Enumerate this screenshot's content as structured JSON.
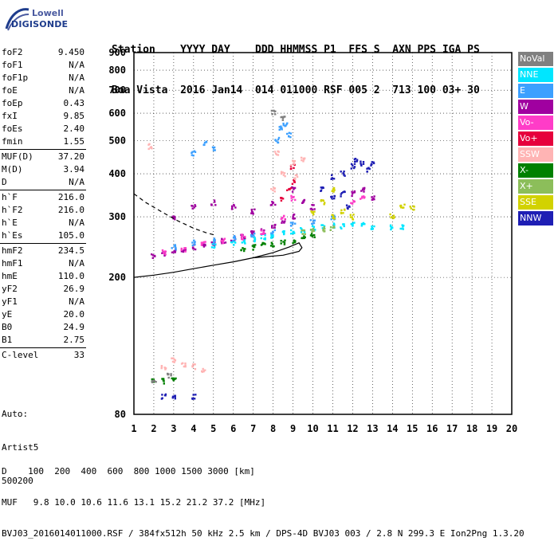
{
  "logo": {
    "line1": "Lowell",
    "line2": "DIGISONDE"
  },
  "header": {
    "labels": [
      "Station",
      "YYYY",
      "DAY",
      "DDD",
      "HHMMSS",
      "P1",
      "FFS",
      "S",
      "AXN",
      "PPS",
      "IGA",
      "PS"
    ],
    "values": [
      "Boa Vista",
      "2016",
      "Jan14",
      "014",
      "011000",
      "RSF",
      "005",
      "2",
      "713",
      "100",
      "03+",
      "30"
    ],
    "line1": "Station    YYYY DAY    DDD HHMMSS P1  FFS S  AXN PPS IGA PS",
    "line2": "Boa Vista  2016 Jan14  014 011000 RSF 005 2  713 100 03+ 30"
  },
  "params": [
    {
      "k": "foF2",
      "v": "9.450"
    },
    {
      "k": "foF1",
      "v": "N/A"
    },
    {
      "k": "foF1p",
      "v": "N/A"
    },
    {
      "k": "foE",
      "v": "N/A"
    },
    {
      "k": "foEp",
      "v": "0.43"
    },
    {
      "k": "fxI",
      "v": "9.85"
    },
    {
      "k": "foEs",
      "v": "2.40"
    },
    {
      "k": "fmin",
      "v": "1.55"
    },
    {
      "sep": true
    },
    {
      "k": "MUF(D)",
      "v": "37.20"
    },
    {
      "k": "M(D)",
      "v": "3.94"
    },
    {
      "k": "D",
      "v": "N/A"
    },
    {
      "sep": true
    },
    {
      "k": "h`F",
      "v": "216.0"
    },
    {
      "k": "h`F2",
      "v": "216.0"
    },
    {
      "k": "h`E",
      "v": "N/A"
    },
    {
      "k": "h`Es",
      "v": "105.0"
    },
    {
      "sep": true
    },
    {
      "k": "hmF2",
      "v": "234.5"
    },
    {
      "k": "hmF1",
      "v": "N/A"
    },
    {
      "k": "hmE",
      "v": "110.0"
    },
    {
      "k": "yF2",
      "v": "26.9"
    },
    {
      "k": "yF1",
      "v": "N/A"
    },
    {
      "k": "yE",
      "v": "20.0"
    },
    {
      "k": "B0",
      "v": "24.9"
    },
    {
      "k": "B1",
      "v": "2.75"
    },
    {
      "sep": true
    },
    {
      "k": "C-level",
      "v": "33"
    }
  ],
  "auto": {
    "line1": "Auto:",
    "line2": "Artist5",
    "line3": "500200"
  },
  "legend": [
    {
      "label": "NoVal",
      "color": "#808080"
    },
    {
      "label": "NNE",
      "color": "#00e6ff"
    },
    {
      "label": "E",
      "color": "#3ca0ff"
    },
    {
      "label": "W",
      "color": "#a000a0"
    },
    {
      "label": "Vo-",
      "color": "#ff3cc8"
    },
    {
      "label": "Vo+",
      "color": "#e6003c"
    },
    {
      "label": "SSW",
      "color": "#ffb4b4"
    },
    {
      "label": "X-",
      "color": "#008000"
    },
    {
      "label": "X+",
      "color": "#8cbe5a"
    },
    {
      "label": "SSE",
      "color": "#d2d200"
    },
    {
      "label": "NNW",
      "color": "#1e1eb4"
    }
  ],
  "footer": {
    "line1": "D    100  200  400  600  800 1000 1500 3000 [km]",
    "line2": "MUF   9.8 10.0 10.6 11.6 13.1 15.2 21.2 37.2 [MHz]",
    "line3": "BVJ03_2016014011000.RSF / 384fx512h 50 kHz 2.5 km / DPS-4D BVJ03 003 / 2.8 N 299.3 E Ion2Png 1.3.20"
  },
  "chart_data": {
    "type": "scatter",
    "xlabel": "",
    "ylabel": "",
    "xlim": [
      1,
      20
    ],
    "ylim": [
      80,
      900
    ],
    "yscale": "log",
    "xticks": [
      1,
      2,
      3,
      4,
      5,
      6,
      7,
      8,
      9,
      10,
      11,
      12,
      13,
      14,
      15,
      16,
      17,
      18,
      19,
      20
    ],
    "yticks": [
      80,
      200,
      300,
      400,
      500,
      600,
      700,
      800,
      900
    ],
    "grid": true,
    "legend_position": "right",
    "series": [
      {
        "name": "W",
        "color": "#a000a0",
        "points": [
          [
            2.0,
            230
          ],
          [
            2.5,
            235
          ],
          [
            3.0,
            238
          ],
          [
            3.5,
            240
          ],
          [
            4.0,
            245
          ],
          [
            4.5,
            248
          ],
          [
            5.0,
            250
          ],
          [
            5.5,
            255
          ],
          [
            6.0,
            258
          ],
          [
            6.5,
            262
          ],
          [
            7.0,
            268
          ],
          [
            7.5,
            272
          ],
          [
            8.0,
            280
          ],
          [
            8.5,
            290
          ],
          [
            9.0,
            300
          ],
          [
            3.0,
            300
          ],
          [
            4.0,
            320
          ],
          [
            5.0,
            330
          ],
          [
            6.0,
            320
          ],
          [
            7.0,
            310
          ],
          [
            8.0,
            330
          ],
          [
            9.0,
            360
          ],
          [
            9.5,
            330
          ],
          [
            12.0,
            350
          ],
          [
            12.5,
            360
          ],
          [
            13.0,
            340
          ],
          [
            10.0,
            320
          ]
        ]
      },
      {
        "name": "NNE",
        "color": "#00e6ff",
        "points": [
          [
            5.0,
            248
          ],
          [
            6.0,
            252
          ],
          [
            6.5,
            255
          ],
          [
            7.0,
            258
          ],
          [
            7.5,
            262
          ],
          [
            8.0,
            265
          ],
          [
            8.5,
            268
          ],
          [
            9.0,
            272
          ],
          [
            9.5,
            275
          ],
          [
            10.0,
            278
          ],
          [
            10.5,
            280
          ],
          [
            11.0,
            282
          ],
          [
            11.5,
            282
          ],
          [
            12.0,
            285
          ],
          [
            12.5,
            285
          ],
          [
            13.0,
            280
          ],
          [
            14.0,
            280
          ],
          [
            14.5,
            280
          ]
        ]
      },
      {
        "name": "E",
        "color": "#3ca0ff",
        "points": [
          [
            3.0,
            245
          ],
          [
            4.0,
            252
          ],
          [
            5.0,
            255
          ],
          [
            6.0,
            260
          ],
          [
            7.0,
            265
          ],
          [
            8.0,
            270
          ],
          [
            9.0,
            285
          ],
          [
            10.0,
            290
          ],
          [
            11.0,
            300
          ],
          [
            8.2,
            500
          ],
          [
            8.4,
            540
          ],
          [
            8.6,
            560
          ],
          [
            8.8,
            520
          ],
          [
            4.0,
            460
          ],
          [
            4.6,
            490
          ],
          [
            5.0,
            470
          ]
        ]
      },
      {
        "name": "Vo-",
        "color": "#ff3cc8",
        "points": [
          [
            2.5,
            236
          ],
          [
            3.5,
            242
          ],
          [
            4.5,
            250
          ],
          [
            5.5,
            256
          ],
          [
            6.5,
            262
          ],
          [
            7.5,
            270
          ],
          [
            8.5,
            300
          ],
          [
            9.0,
            340
          ],
          [
            12.0,
            330
          ],
          [
            12.5,
            340
          ]
        ]
      },
      {
        "name": "Vo+",
        "color": "#e6003c",
        "points": [
          [
            8.5,
            340
          ],
          [
            9.0,
            380
          ],
          [
            9.0,
            420
          ],
          [
            8.8,
            360
          ]
        ]
      },
      {
        "name": "SSW",
        "color": "#ffb4b4",
        "points": [
          [
            2.5,
            110
          ],
          [
            3.0,
            115
          ],
          [
            3.5,
            112
          ],
          [
            4.0,
            110
          ],
          [
            4.5,
            108
          ],
          [
            8.0,
            360
          ],
          [
            8.5,
            400
          ],
          [
            9.0,
            430
          ],
          [
            9.5,
            440
          ],
          [
            8.2,
            460
          ],
          [
            9.2,
            390
          ],
          [
            1.8,
            480
          ]
        ]
      },
      {
        "name": "X-",
        "color": "#008000",
        "points": [
          [
            6.5,
            240
          ],
          [
            7.0,
            245
          ],
          [
            7.5,
            248
          ],
          [
            8.0,
            250
          ],
          [
            8.5,
            252
          ],
          [
            9.0,
            256
          ],
          [
            9.5,
            260
          ],
          [
            10.0,
            265
          ],
          [
            2.0,
            100
          ],
          [
            2.5,
            100
          ],
          [
            3.0,
            102
          ]
        ]
      },
      {
        "name": "X+",
        "color": "#8cbe5a",
        "points": [
          [
            9.5,
            270
          ],
          [
            10.0,
            272
          ],
          [
            10.5,
            275
          ],
          [
            11.0,
            278
          ]
        ]
      },
      {
        "name": "SSE",
        "color": "#d2d200",
        "points": [
          [
            10.0,
            310
          ],
          [
            10.5,
            330
          ],
          [
            11.0,
            360
          ],
          [
            11.0,
            300
          ],
          [
            11.5,
            310
          ],
          [
            12.0,
            300
          ],
          [
            14.0,
            300
          ],
          [
            14.5,
            320
          ],
          [
            15.0,
            320
          ]
        ]
      },
      {
        "name": "NNW",
        "color": "#1e1eb4",
        "points": [
          [
            10.5,
            360
          ],
          [
            11.0,
            390
          ],
          [
            11.5,
            400
          ],
          [
            11.0,
            340
          ],
          [
            11.5,
            350
          ],
          [
            12.0,
            420
          ],
          [
            12.5,
            430
          ],
          [
            13.0,
            430
          ],
          [
            12.2,
            440
          ],
          [
            12.8,
            410
          ],
          [
            11.8,
            320
          ],
          [
            2.5,
            90
          ],
          [
            3.0,
            90
          ],
          [
            4.0,
            90
          ]
        ]
      },
      {
        "name": "NoVal",
        "color": "#808080",
        "points": [
          [
            2.0,
            100
          ],
          [
            2.8,
            104
          ],
          [
            8.5,
            580
          ],
          [
            8.0,
            600
          ]
        ]
      }
    ],
    "lines": [
      {
        "name": "profile-solid",
        "style": "solid",
        "points": [
          [
            1.0,
            200
          ],
          [
            2.0,
            203
          ],
          [
            3.0,
            207
          ],
          [
            4.0,
            212
          ],
          [
            5.0,
            217
          ],
          [
            6.0,
            222
          ],
          [
            7.0,
            228
          ],
          [
            8.0,
            236
          ],
          [
            8.8,
            245
          ],
          [
            9.3,
            252
          ],
          [
            9.45,
            244
          ],
          [
            9.3,
            238
          ],
          [
            8.5,
            232
          ],
          [
            7.0,
            228
          ]
        ]
      },
      {
        "name": "profile-dashed",
        "style": "dashed",
        "points": [
          [
            1.0,
            350
          ],
          [
            1.6,
            330
          ],
          [
            2.4,
            310
          ],
          [
            3.2,
            292
          ],
          [
            4.0,
            278
          ],
          [
            4.6,
            270
          ],
          [
            5.0,
            266
          ]
        ]
      }
    ]
  }
}
